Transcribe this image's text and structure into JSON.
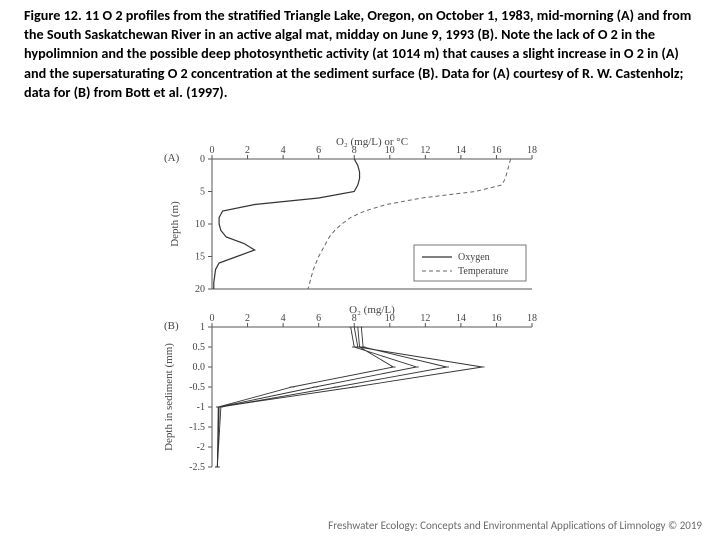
{
  "caption": "Figure 12. 11 O 2 profiles from the stratified Triangle Lake, Oregon, on October 1, 1983, mid-morning (A) and from the South Saskatchewan River in an active algal mat, midday on June 9, 1993 (B). Note the lack of O 2 in the hypolimnion and the possible deep photosynthetic activity (at 1014 m) that causes a slight increase in O 2 in (A) and the supersaturating O 2 concentration at the sediment surface (B). Data for (A) courtesy of R. W. Castenholz; data for (B) from Bott et al. (1997).",
  "footer": "Freshwater Ecology: Concepts and Environmental Applications of Limnology   © 2019",
  "labels": {
    "panelA": "(A)",
    "panelB": "(B)",
    "topAxisTitle": "O₂ (mg/L) or °C",
    "bottomAxisTitle": "O₂ (mg/L)",
    "depthA": "Depth (m)",
    "depthB": "Depth in sediment (mm)",
    "legendOxygen": "Oxygen",
    "legendTemperature": "Temperature"
  },
  "colors": {
    "axis": "#555555",
    "background": "#ffffff",
    "lineOxygen": "#333333",
    "lineTemp": "#666666",
    "text": "#444444"
  },
  "chartA": {
    "xlim": [
      0,
      18
    ],
    "xticks": [
      0,
      2,
      4,
      6,
      8,
      10,
      12,
      14,
      16,
      18
    ],
    "ylim": [
      0,
      20
    ],
    "yticks": [
      0,
      5,
      10,
      15,
      20
    ],
    "oxygen": [
      [
        8,
        0
      ],
      [
        8.2,
        1
      ],
      [
        8.3,
        2
      ],
      [
        8.3,
        3
      ],
      [
        8.2,
        4
      ],
      [
        8.0,
        5
      ],
      [
        6.0,
        6
      ],
      [
        2.4,
        7
      ],
      [
        0.6,
        8
      ],
      [
        0.4,
        9
      ],
      [
        0.4,
        10
      ],
      [
        0.5,
        11
      ],
      [
        0.8,
        12
      ],
      [
        1.8,
        13
      ],
      [
        2.4,
        14
      ],
      [
        1.4,
        15
      ],
      [
        0.4,
        16
      ],
      [
        0.2,
        17
      ],
      [
        0.15,
        18
      ],
      [
        0.1,
        19
      ],
      [
        0.1,
        20
      ]
    ],
    "temperature": [
      [
        16.8,
        0
      ],
      [
        16.7,
        1
      ],
      [
        16.6,
        2
      ],
      [
        16.5,
        3
      ],
      [
        16.3,
        4
      ],
      [
        14.8,
        5
      ],
      [
        11.8,
        6
      ],
      [
        9.8,
        7
      ],
      [
        8.6,
        8
      ],
      [
        7.8,
        9
      ],
      [
        7.3,
        10
      ],
      [
        6.9,
        11
      ],
      [
        6.6,
        12
      ],
      [
        6.4,
        13
      ],
      [
        6.2,
        14
      ],
      [
        6.0,
        15
      ],
      [
        5.85,
        16
      ],
      [
        5.7,
        17
      ],
      [
        5.6,
        18
      ],
      [
        5.5,
        19
      ],
      [
        5.4,
        20
      ]
    ],
    "dash": "4,3"
  },
  "chartB": {
    "xlim": [
      0,
      18
    ],
    "xticks": [
      0,
      2,
      4,
      6,
      8,
      10,
      12,
      14,
      16,
      18
    ],
    "ylim": [
      -2.5,
      1.0
    ],
    "yticks": [
      1.0,
      0.5,
      0.0,
      -0.5,
      -1.0,
      -1.5,
      -2.0,
      -2.5
    ],
    "series": [
      [
        [
          8.4,
          1.0
        ],
        [
          8.5,
          0.5
        ],
        [
          13.2,
          0.0
        ],
        [
          7.0,
          -0.5
        ],
        [
          0.5,
          -1.0
        ],
        [
          0.3,
          -2.5
        ]
      ],
      [
        [
          8.0,
          1.0
        ],
        [
          8.2,
          0.5
        ],
        [
          15.2,
          0.0
        ],
        [
          8.0,
          -0.5
        ],
        [
          0.4,
          -1.0
        ],
        [
          0.3,
          -2.5
        ]
      ],
      [
        [
          7.8,
          1.0
        ],
        [
          8.0,
          0.5
        ],
        [
          11.5,
          0.0
        ],
        [
          5.8,
          -0.5
        ],
        [
          0.4,
          -1.0
        ],
        [
          0.3,
          -2.5
        ]
      ],
      [
        [
          8.2,
          1.0
        ],
        [
          8.3,
          0.5
        ],
        [
          10.2,
          0.0
        ],
        [
          4.5,
          -0.5
        ],
        [
          0.35,
          -1.0
        ],
        [
          0.3,
          -2.5
        ]
      ]
    ],
    "yLabelFormat": [
      "1",
      "0.5",
      "0.0",
      "-0.5",
      "-1",
      "-1.5",
      "-2",
      "-2.5"
    ]
  },
  "style": {
    "axisFontSize": 10,
    "titleFontSize": 11,
    "tickLen": 4,
    "lineWidth": 1,
    "markerSize": 2.3
  }
}
